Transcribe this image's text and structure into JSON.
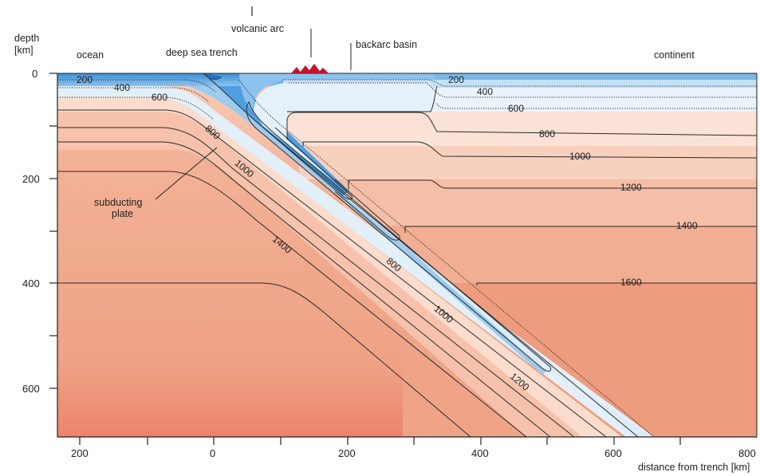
{
  "labels": {
    "depth_axis": [
      "depth",
      "[km]"
    ],
    "ocean": "ocean",
    "continent": "continent",
    "deep_sea_trench": "deep sea trench",
    "volcanic_arc": "volcanic arc",
    "backarc_basin": "backarc basin",
    "subducting_plate": [
      "subducting",
      "plate"
    ],
    "x_axis_title": "distance from trench [km]"
  },
  "y_ticks": [
    "0",
    "200",
    "400",
    "600"
  ],
  "x_ticks": [
    "200",
    "0",
    "200",
    "400",
    "600",
    "800"
  ],
  "isotherms": {
    "ocean": [
      "200",
      "400",
      "600"
    ],
    "slab_upper": [
      "800",
      "1000",
      "1400"
    ],
    "slab_lower": [
      "800",
      "1000",
      "1200"
    ],
    "continent": [
      "200",
      "400",
      "600",
      "800",
      "1000",
      "1200",
      "1400",
      "1600"
    ]
  },
  "colors": {
    "cold_blue": "#3a8fd6",
    "cool_blue": "#9ccbef",
    "pale_blue": "#dcecf8",
    "warm_pale": "#fbe3d6",
    "warm_mid": "#f6c4ab",
    "hot": "#ee9a7a",
    "hottest": "#e55a40",
    "arc_red": "#c8102e"
  }
}
